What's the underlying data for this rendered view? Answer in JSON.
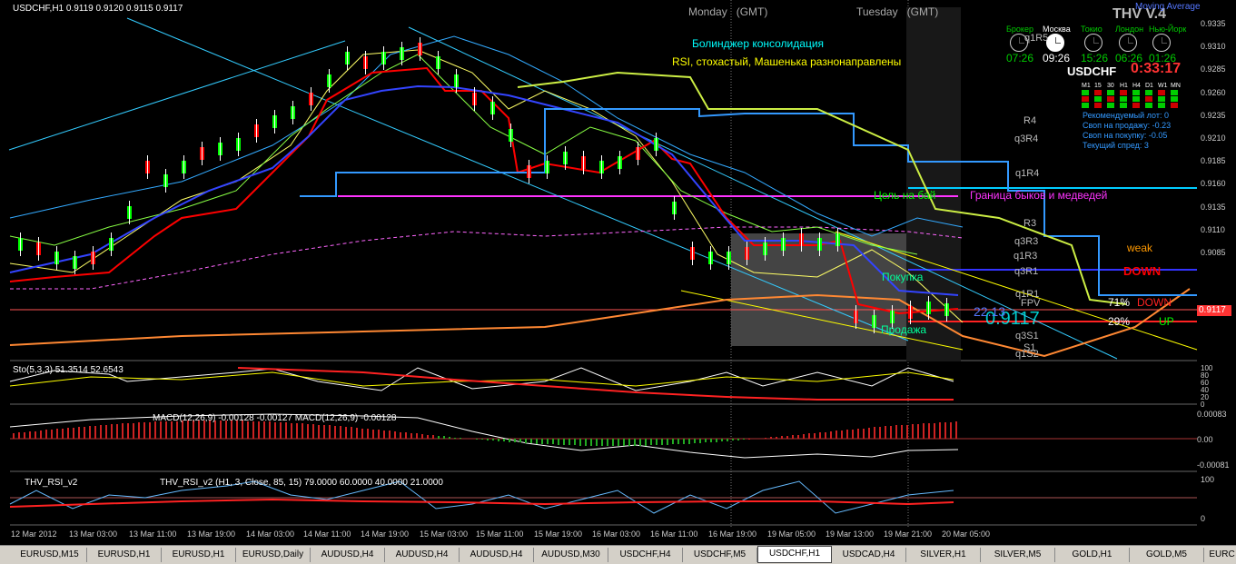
{
  "chart_header": "USDCHF,H1  0.9119 0.9120 0.9115 0.9117",
  "session_labels": [
    {
      "day": "Monday",
      "tz": "(GMT)"
    },
    {
      "day": "Tuesday",
      "tz": "(GMT)"
    }
  ],
  "notes": {
    "line1": "Болинджер консолидация",
    "line2": "RSI, стохастый, Машенька разнонаправлены"
  },
  "panel_title": "THV V.4",
  "panel_subtitle": "Moving Average",
  "markets": [
    {
      "city": "Брокер",
      "time": "07:26",
      "color": "#00cc00"
    },
    {
      "city": "Москва",
      "time": "09:26",
      "color": "#ffffff"
    },
    {
      "city": "Токио",
      "time": "15:26",
      "color": "#00cc00"
    },
    {
      "city": "Лондон",
      "time": "06:26",
      "color": "#00cc00"
    },
    {
      "city": "Нью-Йорк",
      "time": "01:26",
      "color": "#00cc00"
    }
  ],
  "symbol": "USDCHF",
  "countdown": "0:33:17",
  "timeframes": [
    "M1",
    "15",
    "30",
    "H1",
    "H4",
    "D1",
    "W1",
    "MN"
  ],
  "info_lines": [
    "Рекомендуемый лот: 0",
    "Своп на продажу: -0.23",
    "Своп на покупку: -0.05",
    "Текущий спред: 3"
  ],
  "price_scale": [
    "0.9335",
    "0.9310",
    "0.9285",
    "0.9260",
    "0.9235",
    "0.9210",
    "0.9185",
    "0.9160",
    "0.9135",
    "0.9110",
    "0.9085"
  ],
  "current_price": "0.9117",
  "big_price": "0.9117",
  "levels": [
    "q1R5",
    "q1R5",
    "q1R5",
    "R4",
    "q3R4",
    "q1R4",
    "R3",
    "q3R3",
    "q1R3",
    "q3R1",
    "q1R1",
    "FPV",
    "q3S1",
    "S1",
    "q1S2"
  ],
  "annotations": {
    "target_buy": "Цель на бай",
    "bull_bear": "Граница быков и медведей",
    "buy": "Покупка",
    "sell": "Продажа",
    "weak": "weak",
    "down": "DOWN",
    "pct_down": "71%",
    "down2": "DOWN",
    "pct_up": "29%",
    "up": "UP",
    "value_1": "22.13"
  },
  "stoch": {
    "header": "Sto(5,3,3) 51.3514 52.6543",
    "scale": [
      "100",
      "80",
      "60",
      "40",
      "20",
      "0"
    ]
  },
  "macd": {
    "header": "MACD(12,26,9) -0.00128 -0.00127 MACD(12,26,9) -0.00128",
    "scale": [
      "0.00083",
      "0.00",
      "-0.00081"
    ]
  },
  "rsi": {
    "header": "THV_RSI_v2",
    "header2": "THV_RSI_v2 (H1, 3, Close, 85, 15) 79.0000 60.0000 40.0000 21.0000",
    "scale": [
      "100",
      "0"
    ]
  },
  "time_axis": [
    "12 Mar 2012",
    "13 Mar 03:00",
    "13 Mar 11:00",
    "13 Mar 19:00",
    "14 Mar 03:00",
    "14 Mar 11:00",
    "14 Mar 19:00",
    "15 Mar 03:00",
    "15 Mar 11:00",
    "15 Mar 19:00",
    "16 Mar 03:00",
    "16 Mar 11:00",
    "16 Mar 19:00",
    "19 Mar 05:00",
    "19 Mar 13:00",
    "19 Mar 21:00",
    "20 Mar 05:00"
  ],
  "tabs": [
    "EURUSD,M15",
    "EURUSD,H1",
    "EURUSD,H1",
    "EURUSD,Daily",
    "AUDUSD,H4",
    "AUDUSD,H4",
    "AUDUSD,H4",
    "AUDUSD,M30",
    "USDCHF,H4",
    "USDCHF,M5",
    "USDCHF,H1",
    "USDCAD,H4",
    "SILVER,H1",
    "SILVER,M5",
    "GOLD,H1",
    "GOLD,M5",
    "EURC"
  ],
  "active_tab": "USDCHF,H1",
  "colors": {
    "bull": "#00ff00",
    "bear": "#ff0000",
    "accent": "#00ffff",
    "magenta": "#ff33ff"
  }
}
